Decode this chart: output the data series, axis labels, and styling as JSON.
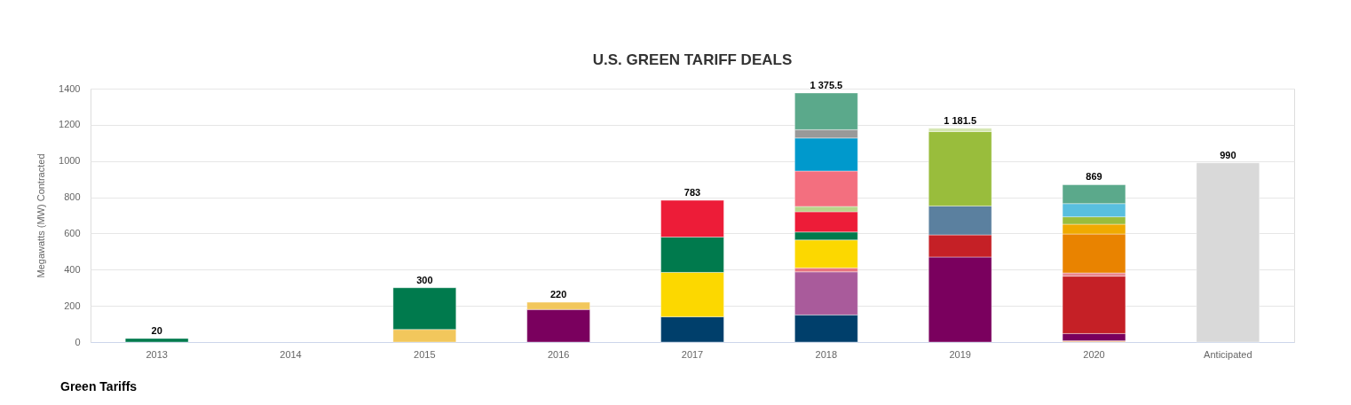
{
  "chart_data": {
    "type": "bar",
    "title": "U.S. GREEN TARIFF DEALS",
    "ylabel": "Megawatts (MW) Contracted",
    "categories": [
      "2013",
      "2014",
      "2015",
      "2016",
      "2017",
      "2018",
      "2019",
      "2020",
      "Anticipated"
    ],
    "stacked": true,
    "series": [
      {
        "values": [
          20,
          null,
          70,
          180,
          140,
          150,
          470,
          7,
          990
        ],
        "colors": [
          "#007a4d",
          null,
          "#f2c75c",
          "#7a005e",
          "#003f6b",
          "#003f6b",
          "#7a005e",
          "#f5c28a",
          "#d9d9d9"
        ]
      },
      {
        "values": [
          null,
          null,
          230,
          40,
          245,
          238,
          122,
          40,
          null
        ],
        "colors": [
          null,
          null,
          "#007a4d",
          "#f2c75c",
          "#fcd800",
          "#a95b9b",
          "#c52026",
          "#7a005e",
          null
        ]
      },
      {
        "values": [
          null,
          null,
          null,
          null,
          195,
          22,
          160,
          317,
          null
        ],
        "colors": [
          null,
          null,
          null,
          null,
          "#007a4d",
          "#e8747f",
          "#5b809f",
          "#c52026",
          null
        ]
      },
      {
        "values": [
          null,
          null,
          null,
          null,
          203,
          154,
          411,
          18,
          null
        ],
        "colors": [
          null,
          null,
          null,
          null,
          "#ed1c38",
          "#fcd800",
          "#99bd3c",
          "#e8858f",
          null
        ]
      },
      {
        "values": [
          null,
          null,
          null,
          null,
          null,
          44,
          18,
          215,
          null
        ],
        "colors": [
          null,
          null,
          null,
          null,
          null,
          "#007a4d",
          "#d4e6b0",
          "#e98300",
          null
        ]
      },
      {
        "values": [
          null,
          null,
          null,
          null,
          null,
          112,
          null,
          54,
          null
        ],
        "colors": [
          null,
          null,
          null,
          null,
          null,
          "#ed1c38",
          null,
          "#f0aa00",
          null
        ]
      },
      {
        "values": [
          null,
          null,
          null,
          null,
          null,
          29,
          null,
          41,
          null
        ],
        "colors": [
          null,
          null,
          null,
          null,
          null,
          "#b9d58a",
          null,
          "#99bd3c",
          null
        ]
      },
      {
        "values": [
          null,
          null,
          null,
          null,
          null,
          196,
          null,
          73,
          null
        ],
        "colors": [
          null,
          null,
          null,
          null,
          null,
          "#f36f7f",
          null,
          "#59bfdf",
          null
        ]
      },
      {
        "values": [
          null,
          null,
          null,
          null,
          null,
          182,
          null,
          104,
          null
        ],
        "colors": [
          null,
          null,
          null,
          null,
          null,
          "#0099cc",
          null,
          "#5ba98b",
          null
        ]
      },
      {
        "values": [
          null,
          null,
          null,
          null,
          null,
          46,
          null,
          null,
          null
        ],
        "colors": [
          null,
          null,
          null,
          null,
          null,
          "#999999",
          null,
          null,
          null
        ]
      },
      {
        "values": [
          null,
          null,
          null,
          null,
          null,
          203,
          null,
          null,
          null
        ],
        "colors": [
          null,
          null,
          null,
          null,
          null,
          "#5ba98b",
          null,
          null,
          null
        ]
      }
    ],
    "totals": [
      "20",
      null,
      "300",
      "220",
      "783",
      "1 375.5",
      "1 181.5",
      "869",
      "990"
    ],
    "ylim": [
      0,
      1400
    ],
    "yticks": [
      0,
      200,
      400,
      600,
      800,
      1000,
      1200,
      1400
    ],
    "grid": "y",
    "annotations": [
      "Green Tariffs"
    ]
  }
}
